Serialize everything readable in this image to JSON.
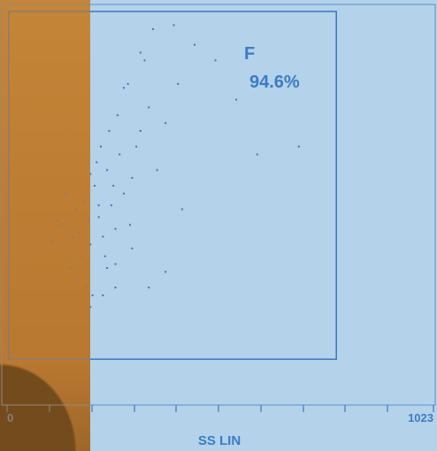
{
  "chart_data": {
    "type": "scatter",
    "x_label": "SS LIN",
    "xlim": [
      0,
      1023
    ],
    "ylim": [
      0,
      1023
    ],
    "xticks": [
      0,
      1023
    ],
    "color": "#3a78c0",
    "gate": {
      "name": "F",
      "label": "94.6%",
      "x": [
        4,
        790
      ],
      "y": [
        117,
        1005
      ]
    },
    "x": [
      110,
      130,
      150,
      165,
      175,
      185,
      195,
      200,
      210,
      220,
      230,
      240,
      250,
      260,
      270,
      280,
      300,
      320,
      340,
      150,
      170,
      190,
      205,
      215,
      225,
      235,
      245,
      255,
      265,
      280,
      295,
      310,
      330,
      360,
      380,
      410,
      450,
      500,
      550,
      600,
      260,
      300,
      340,
      380,
      420,
      120,
      140,
      160,
      180,
      200,
      220,
      240,
      200,
      230,
      260,
      290,
      320,
      350,
      400,
      700
    ],
    "y": [
      420,
      460,
      380,
      500,
      440,
      520,
      470,
      410,
      560,
      480,
      430,
      600,
      510,
      450,
      640,
      540,
      580,
      700,
      760,
      350,
      320,
      300,
      280,
      620,
      660,
      380,
      700,
      560,
      740,
      810,
      460,
      660,
      880,
      600,
      720,
      820,
      920,
      880,
      780,
      640,
      360,
      400,
      300,
      340,
      500,
      470,
      540,
      430,
      380,
      590,
      510,
      350,
      250,
      280,
      300,
      820,
      900,
      960,
      970,
      660
    ]
  }
}
